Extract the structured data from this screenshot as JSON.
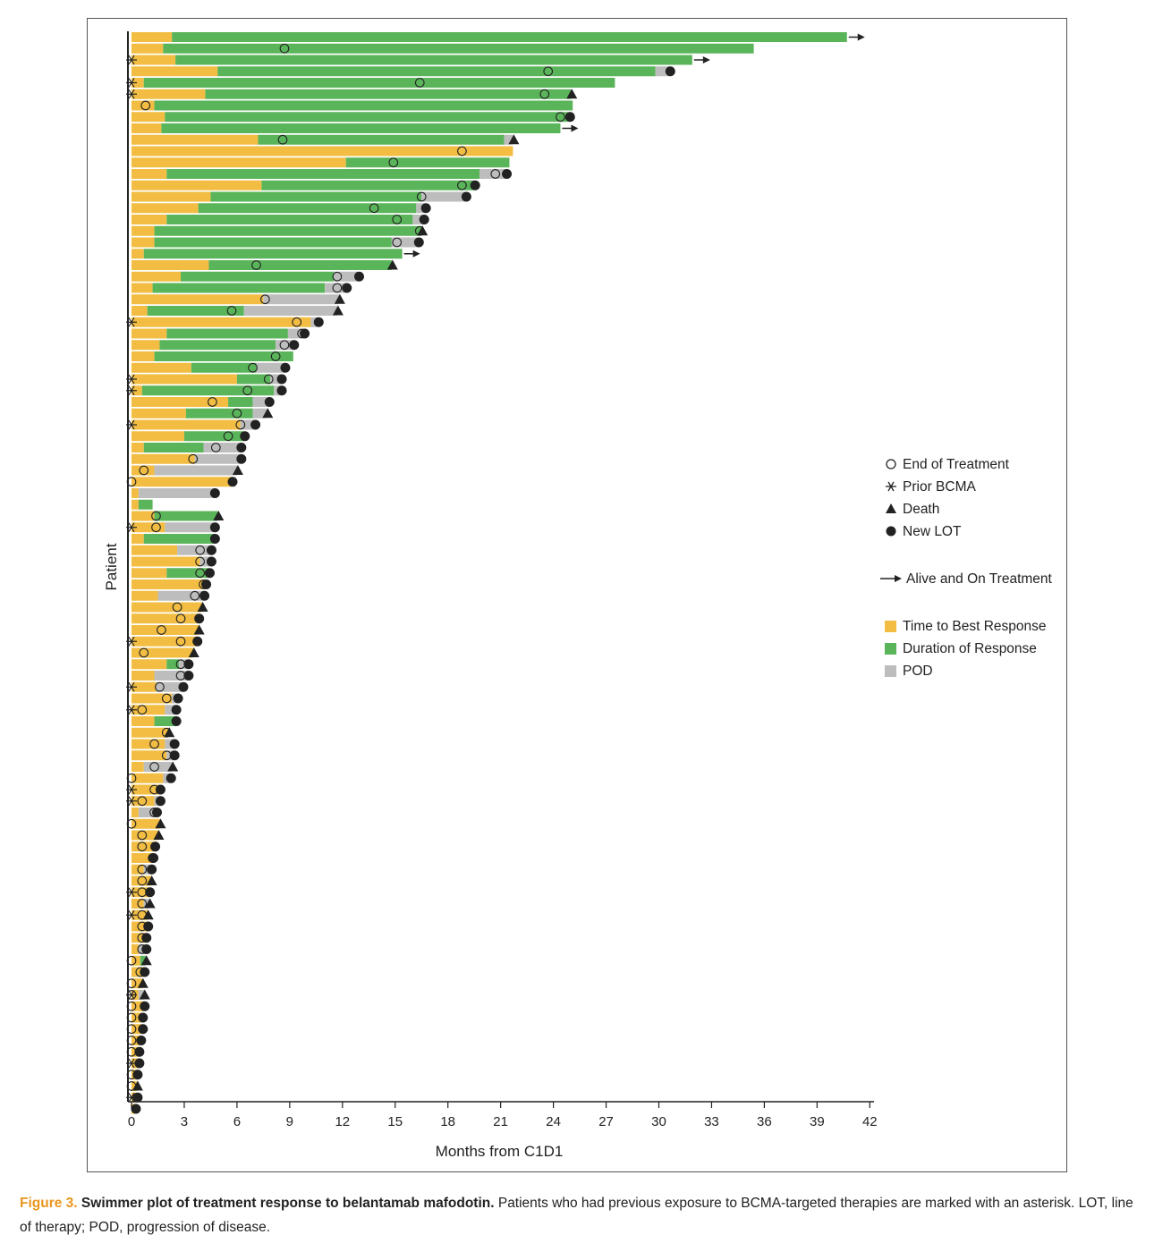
{
  "caption": {
    "figure_label": "Figure 3.",
    "title": "Swimmer plot of treatment response to belantamab mafodotin.",
    "text": " Patients who had previous exposure to BCMA-targeted therapies are marked with an asterisk. LOT, line of therapy; POD, progression of disease."
  },
  "colors": {
    "time_to_best_response": "#f2bd42",
    "duration_of_response": "#5ab55a",
    "pod": "#bdbdbd",
    "marker": "#222222"
  },
  "legend": {
    "end_of_treatment": "End of Treatment",
    "prior_bcma": "Prior BCMA",
    "death": "Death",
    "new_lot": "New LOT",
    "alive": "Alive and On Treatment",
    "ttbr": "Time to Best Response",
    "dor": "Duration of Response",
    "pod": "POD"
  },
  "chart_data": {
    "type": "bar",
    "orientation": "horizontal swimmer",
    "xlabel": "Months from C1D1",
    "ylabel": "Patient",
    "xlim": [
      0,
      42
    ],
    "xticks": [
      0,
      3,
      6,
      9,
      12,
      15,
      18,
      21,
      24,
      27,
      30,
      33,
      36,
      39,
      42
    ],
    "legend_position": "right",
    "segment_order": [
      "time_to_best_response",
      "duration_of_response",
      "pod"
    ],
    "patients": [
      {
        "ttbr": 2.3,
        "dor": 38.4,
        "pod": 0,
        "eot": null,
        "end": "alive",
        "bcma": false
      },
      {
        "ttbr": 1.8,
        "dor": 33.6,
        "pod": 0,
        "eot": 8.7,
        "end": null,
        "bcma": false
      },
      {
        "ttbr": 2.5,
        "dor": 29.4,
        "pod": 0,
        "eot": null,
        "end": "alive",
        "bcma": true
      },
      {
        "ttbr": 4.9,
        "dor": 24.9,
        "pod": 0.8,
        "eot": 23.7,
        "end": "new_lot",
        "bcma": false
      },
      {
        "ttbr": 0.7,
        "dor": 26.8,
        "pod": 0,
        "eot": 16.4,
        "end": null,
        "bcma": true
      },
      {
        "ttbr": 4.2,
        "dor": 20.8,
        "pod": 0,
        "eot": 23.5,
        "end": "death",
        "bcma": true
      },
      {
        "ttbr": 1.3,
        "dor": 23.8,
        "pod": 0,
        "eot": 0.8,
        "end": null,
        "bcma": false
      },
      {
        "ttbr": 1.9,
        "dor": 23.0,
        "pod": 0,
        "eot": 24.4,
        "end": "new_lot",
        "bcma": false
      },
      {
        "ttbr": 1.7,
        "dor": 22.7,
        "pod": 0,
        "eot": null,
        "end": "alive",
        "bcma": false
      },
      {
        "ttbr": 7.2,
        "dor": 14.0,
        "pod": 0.5,
        "eot": 8.6,
        "end": "death",
        "bcma": false
      },
      {
        "ttbr": 21.7,
        "dor": 0,
        "pod": 0,
        "eot": 18.8,
        "end": null,
        "bcma": false
      },
      {
        "ttbr": 12.2,
        "dor": 9.3,
        "pod": 0,
        "eot": 14.9,
        "end": null,
        "bcma": false
      },
      {
        "ttbr": 2.0,
        "dor": 17.8,
        "pod": 1.5,
        "eot": 20.7,
        "end": "new_lot",
        "bcma": false
      },
      {
        "ttbr": 7.4,
        "dor": 12.1,
        "pod": 0,
        "eot": 18.8,
        "end": "new_lot",
        "bcma": false
      },
      {
        "ttbr": 4.5,
        "dor": 12.0,
        "pod": 2.5,
        "eot": 16.5,
        "end": "new_lot",
        "bcma": false
      },
      {
        "ttbr": 3.8,
        "dor": 12.4,
        "pod": 0.5,
        "eot": 13.8,
        "end": "new_lot",
        "bcma": false
      },
      {
        "ttbr": 2.0,
        "dor": 14.0,
        "pod": 0.6,
        "eot": 15.1,
        "end": "new_lot",
        "bcma": false
      },
      {
        "ttbr": 1.3,
        "dor": 15.2,
        "pod": 0,
        "eot": 16.4,
        "end": "death",
        "bcma": false
      },
      {
        "ttbr": 1.3,
        "dor": 13.5,
        "pod": 1.5,
        "eot": 15.1,
        "end": "new_lot",
        "bcma": false
      },
      {
        "ttbr": 0.7,
        "dor": 14.7,
        "pod": 0,
        "eot": null,
        "end": "alive",
        "bcma": false
      },
      {
        "ttbr": 4.4,
        "dor": 10.4,
        "pod": 0,
        "eot": 7.1,
        "end": "death",
        "bcma": false
      },
      {
        "ttbr": 2.8,
        "dor": 8.7,
        "pod": 1.4,
        "eot": 11.7,
        "end": "new_lot",
        "bcma": false
      },
      {
        "ttbr": 1.2,
        "dor": 9.8,
        "pod": 1.2,
        "eot": 11.7,
        "end": "new_lot",
        "bcma": false
      },
      {
        "ttbr": 7.5,
        "dor": 0,
        "pod": 4.3,
        "eot": 7.6,
        "end": "death",
        "bcma": false
      },
      {
        "ttbr": 0.9,
        "dor": 5.5,
        "pod": 5.3,
        "eot": 5.7,
        "end": "death",
        "bcma": false
      },
      {
        "ttbr": 10.2,
        "dor": 0,
        "pod": 0.4,
        "eot": 9.4,
        "end": "new_lot",
        "bcma": true
      },
      {
        "ttbr": 2.0,
        "dor": 6.9,
        "pod": 0.9,
        "eot": 9.7,
        "end": "new_lot",
        "bcma": false
      },
      {
        "ttbr": 1.6,
        "dor": 6.6,
        "pod": 1.0,
        "eot": 8.7,
        "end": "new_lot",
        "bcma": false
      },
      {
        "ttbr": 1.3,
        "dor": 7.9,
        "pod": 0,
        "eot": 8.2,
        "end": null,
        "bcma": false
      },
      {
        "ttbr": 3.4,
        "dor": 3.7,
        "pod": 1.6,
        "eot": 6.9,
        "end": "new_lot",
        "bcma": false
      },
      {
        "ttbr": 6.0,
        "dor": 1.9,
        "pod": 0.6,
        "eot": 7.8,
        "end": "new_lot",
        "bcma": true
      },
      {
        "ttbr": 0.6,
        "dor": 7.5,
        "pod": 0.4,
        "eot": 6.6,
        "end": "new_lot",
        "bcma": true
      },
      {
        "ttbr": 5.5,
        "dor": 1.4,
        "pod": 0.9,
        "eot": 4.6,
        "end": "new_lot",
        "bcma": false
      },
      {
        "ttbr": 3.1,
        "dor": 3.8,
        "pod": 0.8,
        "eot": 6.0,
        "end": "death",
        "bcma": false
      },
      {
        "ttbr": 6.2,
        "dor": 0,
        "pod": 0.8,
        "eot": 6.2,
        "end": "new_lot",
        "bcma": true
      },
      {
        "ttbr": 3.0,
        "dor": 3.4,
        "pod": 0,
        "eot": 5.5,
        "end": "new_lot",
        "bcma": false
      },
      {
        "ttbr": 0.7,
        "dor": 3.4,
        "pod": 2.1,
        "eot": 4.8,
        "end": "new_lot",
        "bcma": false
      },
      {
        "ttbr": 3.6,
        "dor": 0,
        "pod": 2.6,
        "eot": 3.5,
        "end": "new_lot",
        "bcma": false
      },
      {
        "ttbr": 1.3,
        "dor": 0,
        "pod": 4.7,
        "eot": 0.7,
        "end": "death",
        "bcma": false
      },
      {
        "ttbr": 5.7,
        "dor": 0,
        "pod": 0,
        "eot": 0.0,
        "end": "new_lot",
        "bcma": false
      },
      {
        "ttbr": 0.4,
        "dor": 0,
        "pod": 4.3,
        "eot": null,
        "end": "new_lot",
        "bcma": false
      },
      {
        "ttbr": 0.4,
        "dor": 0.8,
        "pod": 0,
        "eot": null,
        "end": null,
        "bcma": false
      },
      {
        "ttbr": 1.3,
        "dor": 3.6,
        "pod": 0,
        "eot": 1.4,
        "end": "death",
        "bcma": false
      },
      {
        "ttbr": 1.9,
        "dor": 0,
        "pod": 2.8,
        "eot": 1.4,
        "end": "new_lot",
        "bcma": true
      },
      {
        "ttbr": 0.7,
        "dor": 4.0,
        "pod": 0,
        "eot": null,
        "end": "new_lot",
        "bcma": false
      },
      {
        "ttbr": 2.6,
        "dor": 0,
        "pod": 1.9,
        "eot": 3.9,
        "end": "new_lot",
        "bcma": false
      },
      {
        "ttbr": 3.9,
        "dor": 0,
        "pod": 0.6,
        "eot": 3.9,
        "end": "new_lot",
        "bcma": false
      },
      {
        "ttbr": 2.0,
        "dor": 2.4,
        "pod": 0,
        "eot": 3.9,
        "end": "new_lot",
        "bcma": false
      },
      {
        "ttbr": 4.2,
        "dor": 0,
        "pod": 0,
        "eot": 4.1,
        "end": "new_lot",
        "bcma": false
      },
      {
        "ttbr": 1.5,
        "dor": 0,
        "pod": 2.6,
        "eot": 3.6,
        "end": "new_lot",
        "bcma": false
      },
      {
        "ttbr": 4.0,
        "dor": 0,
        "pod": 0,
        "eot": 2.6,
        "end": "death",
        "bcma": false
      },
      {
        "ttbr": 3.8,
        "dor": 0,
        "pod": 0,
        "eot": 2.8,
        "end": "new_lot",
        "bcma": false
      },
      {
        "ttbr": 3.8,
        "dor": 0,
        "pod": 0,
        "eot": 1.7,
        "end": "death",
        "bcma": false
      },
      {
        "ttbr": 3.7,
        "dor": 0,
        "pod": 0,
        "eot": 2.8,
        "end": "new_lot",
        "bcma": true
      },
      {
        "ttbr": 3.5,
        "dor": 0,
        "pod": 0,
        "eot": 0.7,
        "end": "death",
        "bcma": false
      },
      {
        "ttbr": 2.0,
        "dor": 0.7,
        "pod": 0.5,
        "eot": 2.8,
        "end": "new_lot",
        "bcma": false
      },
      {
        "ttbr": 1.3,
        "dor": 0,
        "pod": 1.9,
        "eot": 2.8,
        "end": "new_lot",
        "bcma": false
      },
      {
        "ttbr": 1.4,
        "dor": 0,
        "pod": 1.5,
        "eot": 1.6,
        "end": "new_lot",
        "bcma": true
      },
      {
        "ttbr": 2.3,
        "dor": 0,
        "pod": 0.3,
        "eot": 2.0,
        "end": "new_lot",
        "bcma": false
      },
      {
        "ttbr": 1.9,
        "dor": 0,
        "pod": 0.6,
        "eot": 0.6,
        "end": "new_lot",
        "bcma": true
      },
      {
        "ttbr": 1.3,
        "dor": 1.2,
        "pod": 0,
        "eot": null,
        "end": "new_lot",
        "bcma": false
      },
      {
        "ttbr": 2.1,
        "dor": 0,
        "pod": 0,
        "eot": 2.0,
        "end": "death",
        "bcma": false
      },
      {
        "ttbr": 1.9,
        "dor": 0,
        "pod": 0.5,
        "eot": 1.3,
        "end": "new_lot",
        "bcma": false
      },
      {
        "ttbr": 2.0,
        "dor": 0,
        "pod": 0.4,
        "eot": 2.0,
        "end": "new_lot",
        "bcma": false
      },
      {
        "ttbr": 0.7,
        "dor": 0,
        "pod": 1.6,
        "eot": 1.3,
        "end": "death",
        "bcma": false
      },
      {
        "ttbr": 1.8,
        "dor": 0,
        "pod": 0.4,
        "eot": 0.0,
        "end": "new_lot",
        "bcma": false
      },
      {
        "ttbr": 1.6,
        "dor": 0,
        "pod": 0,
        "eot": 1.3,
        "end": "new_lot",
        "bcma": true
      },
      {
        "ttbr": 1.3,
        "dor": 0,
        "pod": 0.3,
        "eot": 0.6,
        "end": "new_lot",
        "bcma": true
      },
      {
        "ttbr": 0.4,
        "dor": 0,
        "pod": 1.0,
        "eot": 1.3,
        "end": "new_lot",
        "bcma": false
      },
      {
        "ttbr": 1.6,
        "dor": 0,
        "pod": 0,
        "eot": 0.0,
        "end": "death",
        "bcma": false
      },
      {
        "ttbr": 1.5,
        "dor": 0,
        "pod": 0,
        "eot": 0.6,
        "end": "death",
        "bcma": false
      },
      {
        "ttbr": 1.3,
        "dor": 0,
        "pod": 0,
        "eot": 0.6,
        "end": "new_lot",
        "bcma": false
      },
      {
        "ttbr": 1.2,
        "dor": 0,
        "pod": 0,
        "eot": 1.2,
        "end": "new_lot",
        "bcma": false
      },
      {
        "ttbr": 0.7,
        "dor": 0,
        "pod": 0.4,
        "eot": 0.6,
        "end": "new_lot",
        "bcma": false
      },
      {
        "ttbr": 1.1,
        "dor": 0,
        "pod": 0,
        "eot": 0.6,
        "end": "death",
        "bcma": false
      },
      {
        "ttbr": 1.0,
        "dor": 0,
        "pod": 0,
        "eot": 0.6,
        "end": "new_lot",
        "bcma": true
      },
      {
        "ttbr": 0.7,
        "dor": 0,
        "pod": 0.3,
        "eot": 0.6,
        "end": "death",
        "bcma": false
      },
      {
        "ttbr": 0.9,
        "dor": 0,
        "pod": 0,
        "eot": 0.6,
        "end": "death",
        "bcma": true
      },
      {
        "ttbr": 0.9,
        "dor": 0,
        "pod": 0,
        "eot": 0.6,
        "end": "new_lot",
        "bcma": false
      },
      {
        "ttbr": 0.8,
        "dor": 0,
        "pod": 0,
        "eot": 0.6,
        "end": "new_lot",
        "bcma": false
      },
      {
        "ttbr": 0.4,
        "dor": 0,
        "pod": 0.4,
        "eot": 0.6,
        "end": "new_lot",
        "bcma": false
      },
      {
        "ttbr": 0.5,
        "dor": 0.3,
        "pod": 0,
        "eot": 0.0,
        "end": "death",
        "bcma": false
      },
      {
        "ttbr": 0.7,
        "dor": 0,
        "pod": 0,
        "eot": 0.5,
        "end": "new_lot",
        "bcma": false
      },
      {
        "ttbr": 0.6,
        "dor": 0,
        "pod": 0,
        "eot": 0.0,
        "end": "death",
        "bcma": false
      },
      {
        "ttbr": 0.4,
        "dor": 0,
        "pod": 0.3,
        "eot": 0.0,
        "end": "death",
        "bcma": true
      },
      {
        "ttbr": 0.7,
        "dor": 0,
        "pod": 0,
        "eot": 0.0,
        "end": "new_lot",
        "bcma": false
      },
      {
        "ttbr": 0.6,
        "dor": 0,
        "pod": 0,
        "eot": 0.0,
        "end": "new_lot",
        "bcma": false
      },
      {
        "ttbr": 0.6,
        "dor": 0,
        "pod": 0,
        "eot": 0.0,
        "end": "new_lot",
        "bcma": false
      },
      {
        "ttbr": 0.5,
        "dor": 0,
        "pod": 0,
        "eot": 0.0,
        "end": "new_lot",
        "bcma": false
      },
      {
        "ttbr": 0.4,
        "dor": 0,
        "pod": 0,
        "eot": 0.0,
        "end": "new_lot",
        "bcma": false
      },
      {
        "ttbr": 0.4,
        "dor": 0,
        "pod": 0,
        "eot": null,
        "end": "new_lot",
        "bcma": true
      },
      {
        "ttbr": 0.3,
        "dor": 0,
        "pod": 0,
        "eot": 0.0,
        "end": "new_lot",
        "bcma": false
      },
      {
        "ttbr": 0.3,
        "dor": 0,
        "pod": 0,
        "eot": 0.0,
        "end": "death",
        "bcma": false
      },
      {
        "ttbr": 0.3,
        "dor": 0,
        "pod": 0,
        "eot": null,
        "end": "new_lot",
        "bcma": true
      },
      {
        "ttbr": 0.2,
        "dor": 0,
        "pod": 0,
        "eot": null,
        "end": "new_lot",
        "bcma": false
      }
    ]
  }
}
